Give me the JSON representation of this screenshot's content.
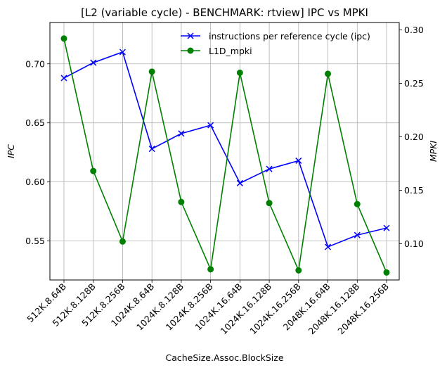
{
  "chart_data": {
    "type": "line",
    "title": "[L2 (variable cycle) - BENCHMARK: rtview]  IPC vs MPKI",
    "xlabel": "CacheSize.Assoc.BlockSize",
    "ylabel_left": "IPC",
    "ylabel_right": "MPKI",
    "categories": [
      "512K.8.64B",
      "512K.8.128B",
      "512K.8.256B",
      "1024K.8.64B",
      "1024K.8.128B",
      "1024K.8.256B",
      "1024K.16.64B",
      "1024K.16.128B",
      "1024K.16.256B",
      "2048K.16.64B",
      "2048K.16.128B",
      "2048K.16.256B"
    ],
    "ylim_left": [
      0.517,
      0.735
    ],
    "ylim_right": [
      0.066,
      0.307
    ],
    "yticks_left": [
      0.55,
      0.6,
      0.65,
      0.7
    ],
    "yticks_left_labels": [
      "0.55",
      "0.60",
      "0.65",
      "0.70"
    ],
    "yticks_right": [
      0.1,
      0.15,
      0.2,
      0.25,
      0.3
    ],
    "yticks_right_labels": [
      "0.10",
      "0.15",
      "0.20",
      "0.25",
      "0.30"
    ],
    "grid": true,
    "legend": "top-right",
    "series": [
      {
        "name": "instructions per reference cycle (ipc)",
        "axis": "left",
        "color": "#0000ff",
        "marker": "x",
        "values": [
          0.688,
          0.701,
          0.71,
          0.628,
          0.641,
          0.648,
          0.599,
          0.611,
          0.618,
          0.545,
          0.555,
          0.561
        ]
      },
      {
        "name": "L1D_mpki",
        "axis": "right",
        "color": "#008000",
        "marker": "o",
        "values": [
          0.292,
          0.168,
          0.102,
          0.261,
          0.139,
          0.076,
          0.26,
          0.138,
          0.075,
          0.259,
          0.137,
          0.073
        ]
      }
    ]
  }
}
